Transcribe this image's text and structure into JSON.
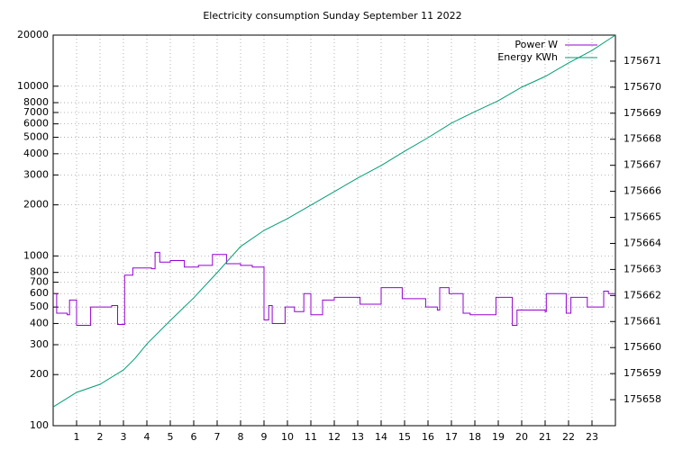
{
  "chart_data": {
    "type": "line",
    "title": "Electricity consumption Sunday September 11 2022",
    "xlim": [
      0,
      24
    ],
    "xticks": [
      1,
      2,
      3,
      4,
      5,
      6,
      7,
      8,
      9,
      10,
      11,
      12,
      13,
      14,
      15,
      16,
      17,
      18,
      19,
      20,
      21,
      22,
      23
    ],
    "ylim": [
      100,
      20000
    ],
    "ylog": true,
    "yticks": [
      100,
      200,
      300,
      400,
      500,
      600,
      700,
      800,
      1000,
      2000,
      3000,
      4000,
      5000,
      6000,
      7000,
      8000,
      10000,
      20000
    ],
    "y2lim": [
      175657,
      175672
    ],
    "y2ticks": [
      175658,
      175659,
      175660,
      175661,
      175662,
      175663,
      175664,
      175665,
      175666,
      175667,
      175668,
      175669,
      175670,
      175671
    ],
    "grid": true,
    "legend": "top-right",
    "series": [
      {
        "name": "Power W",
        "color": "#9400d3",
        "axis": "y",
        "step": true,
        "x": [
          0,
          0.15,
          0.6,
          0.7,
          1.0,
          1.6,
          2.5,
          2.75,
          3.05,
          3.4,
          4.2,
          4.35,
          4.55,
          5.0,
          5.6,
          6.2,
          6.8,
          7.4,
          8.0,
          8.5,
          9.0,
          9.2,
          9.35,
          9.9,
          10.3,
          10.7,
          11.0,
          11.5,
          12.0,
          13.1,
          14.0,
          14.9,
          15.9,
          16.4,
          16.5,
          16.9,
          17.5,
          17.8,
          18.9,
          19.6,
          19.8,
          21.0,
          21.05,
          21.9,
          22.1,
          22.8,
          23.5,
          23.7,
          24
        ],
        "values": [
          600,
          460,
          450,
          550,
          390,
          500,
          510,
          395,
          770,
          850,
          840,
          1050,
          920,
          940,
          860,
          880,
          1020,
          900,
          880,
          860,
          420,
          510,
          400,
          500,
          470,
          600,
          450,
          550,
          570,
          520,
          650,
          560,
          500,
          480,
          650,
          600,
          460,
          450,
          570,
          390,
          480,
          470,
          600,
          460,
          570,
          500,
          620,
          600,
          600
        ]
      },
      {
        "name": "Energy KWh",
        "color": "#009e73",
        "axis": "y2",
        "x": [
          0,
          1,
          2,
          3,
          3.5,
          4,
          5,
          6,
          7,
          8,
          9,
          10,
          11,
          12,
          13,
          14,
          15,
          16,
          17,
          18,
          19,
          20,
          21,
          22,
          23,
          24
        ],
        "values": [
          175657.72,
          175658.28,
          175658.59,
          175659.14,
          175659.59,
          175660.14,
          175661.04,
          175661.91,
          175662.88,
          175663.88,
          175664.5,
          175664.95,
          175665.47,
          175665.99,
          175666.51,
          175666.99,
          175667.54,
          175668.06,
          175668.62,
          175669.06,
          175669.48,
          175670.0,
          175670.41,
          175670.93,
          175671.41,
          175672
        ]
      }
    ]
  }
}
